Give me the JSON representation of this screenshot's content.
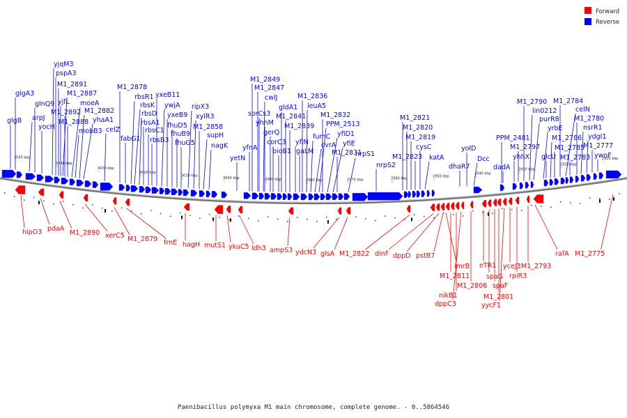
{
  "legend": [
    {
      "label": "Forward",
      "color": "#ff0000"
    },
    {
      "label": "Reverse",
      "color": "#0000ff"
    }
  ],
  "caption": "Paenibacillus polymyxa M1 main chromosome, complete genome. - 0..5864546",
  "ticks": [
    "3050 kbp",
    "3040 kbp",
    "3030 kbp",
    "3020 kbp",
    "3010 kbp",
    "3000 kbp",
    "2990 kbp",
    "2980 kbp",
    "2970 kbp",
    "2960 kbp",
    "2950 kbp",
    "2940 kbp",
    "2930 kbp",
    "2920 kbp",
    "2910 kbp"
  ],
  "reverse_labels": [
    "glgB",
    "glgA3",
    "arpJ",
    "glnQ9",
    "yocH",
    "yjqM3",
    "pspA3",
    "M1_2891",
    "yjfL",
    "M1_2887",
    "M1_2892",
    "M1_2888",
    "moeA",
    "mobB3",
    "M1_2882",
    "yhaA1",
    "celZ",
    "M1_2878",
    "fabG1",
    "rbsR1",
    "rbsK",
    "rbsD",
    "rbsA1",
    "rbsC1",
    "rbsB3",
    "yxeB11",
    "ywjA",
    "yxeB9",
    "fhuD5",
    "fhuB9",
    "fhuG5",
    "ripX3",
    "xylR3",
    "M1_2858",
    "supH",
    "nagK",
    "yetN",
    "yfnA",
    "M1_2849",
    "M1_2847",
    "cwlJ",
    "sorCs3",
    "yhhM",
    "gerQ",
    "corC3",
    "bioB1",
    "gldA1",
    "M1_2841",
    "M1_2839",
    "yflN",
    "gaLM",
    "M1_2836",
    "leuA5",
    "fumC",
    "cvrA",
    "PPM_2513",
    "M1_2832",
    "yfiD1",
    "yfiE",
    "M1_2831",
    "nrpS1",
    "nrpS2",
    "M1_2821",
    "M1_2820",
    "M1_2819",
    "M1_2823",
    "cysC",
    "katA",
    "dhaR7",
    "yolD",
    "Dcc",
    "PPM_2481",
    "dadA",
    "yhhX",
    "M1_2797",
    "M1_2790",
    "lin0212",
    "purR8",
    "yrbE",
    "glcU",
    "M1_2786",
    "M1_2785",
    "M1_2784",
    "celN",
    "M1_2783",
    "M1_2780",
    "nsrR1",
    "ydgI1",
    "M1_2777",
    "ywoF"
  ],
  "forward_labels": [
    "hipO3",
    "pdaA",
    "M1_2890",
    "xerC5",
    "M1_2879",
    "frnE",
    "hagH",
    "mutS1",
    "ykuC5",
    "ldh3",
    "ampS3",
    "ydcN3",
    "glsA",
    "M1_2822",
    "dinF",
    "dppD",
    "pstB7",
    "lmrB",
    "M1_2811",
    "nikB1",
    "dppC3",
    "M1_2806",
    "eTR1",
    "spaG",
    "spaF",
    "M1_2801",
    "yycF1",
    "yceJ3",
    "rpiR3",
    "M1_2793",
    "rafA",
    "M1_2775"
  ]
}
